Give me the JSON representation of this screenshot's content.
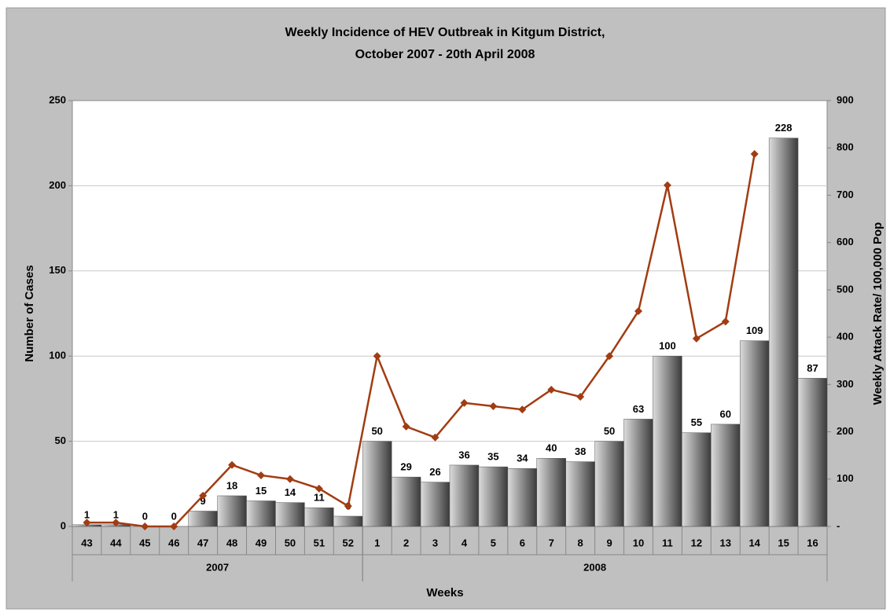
{
  "chart_data": {
    "type": "bar-line",
    "title": [
      "Weekly Incidence of HEV Outbreak in Kitgum District,",
      "October 2007 - 20th April 2008"
    ],
    "x_label": "Weeks",
    "y_label": "Number of Cases",
    "y2_label": "Weekly Attack Rate/ 100,000 Pop",
    "groups": [
      {
        "label": "2007",
        "categories": [
          "43",
          "44",
          "45",
          "46",
          "47",
          "48",
          "49",
          "50",
          "51",
          "52"
        ]
      },
      {
        "label": "2008",
        "categories": [
          "1",
          "2",
          "3",
          "4",
          "5",
          "6",
          "7",
          "8",
          "9",
          "10",
          "11",
          "12",
          "13",
          "14",
          "15",
          "16"
        ]
      }
    ],
    "bars": {
      "color": "#3a3a3a",
      "values": [
        1,
        1,
        0,
        0,
        9,
        18,
        15,
        14,
        11,
        6,
        50,
        29,
        26,
        36,
        35,
        34,
        40,
        38,
        50,
        63,
        100,
        55,
        60,
        109,
        228,
        87
      ]
    },
    "line": {
      "color": "#a23c12",
      "axis": "y2",
      "values": [
        8,
        8,
        0,
        0,
        65,
        130,
        108,
        100,
        80,
        43,
        360,
        211,
        188,
        261,
        254,
        247,
        289,
        274,
        360,
        455,
        721,
        397,
        433,
        787,
        null,
        null
      ]
    },
    "ylim": [
      0,
      250
    ],
    "yticks": [
      0,
      50,
      100,
      150,
      200,
      250
    ],
    "y2lim": [
      0,
      900
    ],
    "y2ticks": [
      {
        "value": 0,
        "label": "-"
      },
      100,
      200,
      300,
      400,
      500,
      600,
      700,
      800,
      900
    ],
    "grid": true
  }
}
